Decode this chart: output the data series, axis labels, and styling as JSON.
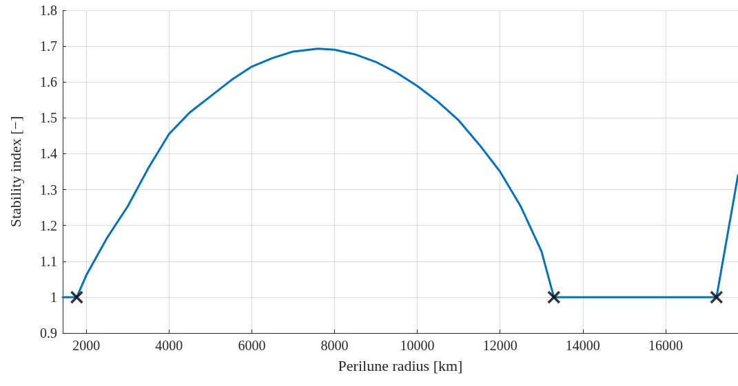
{
  "chart_data": {
    "type": "line",
    "xlabel": "Perilune radius [km]",
    "ylabel": "Stability index [−]",
    "xlim": [
      1430,
      17750
    ],
    "xticks": [
      2000,
      4000,
      6000,
      8000,
      10000,
      12000,
      14000,
      16000
    ],
    "ylim": [
      0.9,
      1.8
    ],
    "yticks": [
      0.9,
      1,
      1.1,
      1.2,
      1.3,
      1.4,
      1.5,
      1.6,
      1.7,
      1.8
    ],
    "grid": true,
    "series": [
      {
        "color": "#0072bd",
        "marker": "none",
        "line_style": "solid",
        "x": [
          1430,
          1770,
          2000,
          2500,
          3000,
          3500,
          4000,
          4500,
          5000,
          5500,
          6000,
          6500,
          7000,
          7600,
          8000,
          8500,
          9000,
          9500,
          10000,
          10500,
          11000,
          11500,
          12000,
          12500,
          13000,
          13300,
          17230,
          17750
        ],
        "values": [
          1,
          1,
          1.061,
          1.165,
          1.253,
          1.36,
          1.455,
          1.515,
          1.56,
          1.605,
          1.643,
          1.667,
          1.685,
          1.693,
          1.69,
          1.677,
          1.656,
          1.626,
          1.589,
          1.545,
          1.493,
          1.425,
          1.35,
          1.253,
          1.128,
          1,
          1,
          1.34
        ]
      },
      {
        "type": "scatter",
        "color": "#000000",
        "marker": "cross",
        "x": [
          1770,
          13300,
          17230
        ],
        "values": [
          1,
          1,
          1
        ]
      }
    ]
  }
}
